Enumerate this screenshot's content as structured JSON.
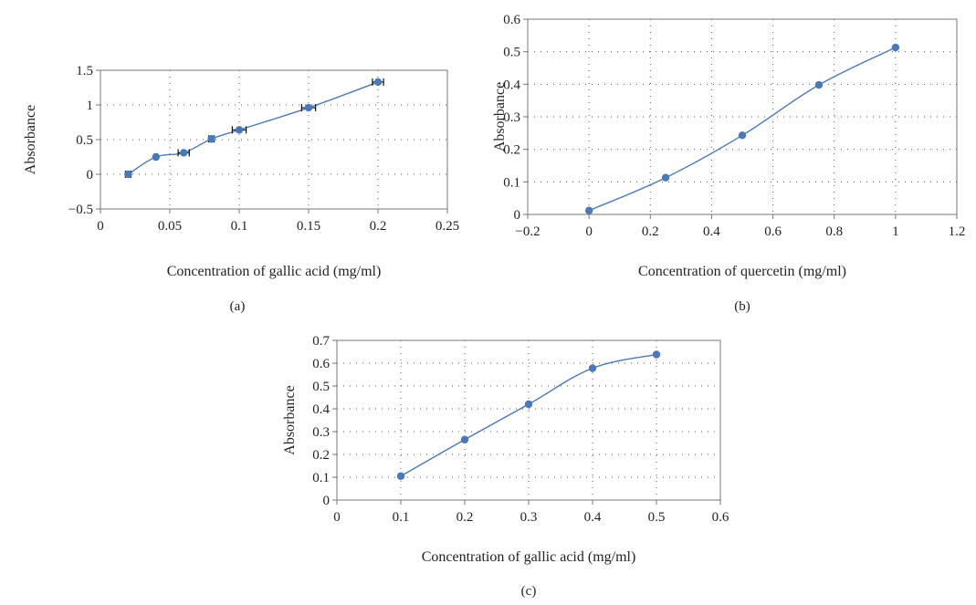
{
  "chart_data": [
    {
      "type": "line",
      "panel_label": "(a)",
      "xlabel": "Concentration of gallic acid (mg/ml)",
      "ylabel": "Absorbance",
      "xlim": [
        0,
        0.25
      ],
      "ylim": [
        -0.5,
        1.5
      ],
      "xticks": [
        0,
        0.05,
        0.1,
        0.15,
        0.2,
        0.25
      ],
      "xtick_labels": [
        "0",
        "0.05",
        "0.1",
        "0.15",
        "0.2",
        "0.25"
      ],
      "yticks": [
        -0.5,
        0,
        0.5,
        1,
        1.5
      ],
      "ytick_labels": [
        "−0.5",
        "0",
        "0.5",
        "1",
        "1.5"
      ],
      "grid": true,
      "color": "#4a78b8",
      "error_bars": true,
      "series": [
        {
          "x": [
            0.02,
            0.04,
            0.06,
            0.08,
            0.1,
            0.15,
            0.2
          ],
          "y": [
            0.0,
            0.25,
            0.31,
            0.51,
            0.64,
            0.96,
            1.33
          ],
          "x_error": [
            0.002,
            0.001,
            0.004,
            0.002,
            0.005,
            0.005,
            0.004
          ]
        }
      ]
    },
    {
      "type": "line",
      "panel_label": "(b)",
      "xlabel": "Concentration of quercetin (mg/ml)",
      "ylabel": "Absorbance",
      "xlim": [
        -0.2,
        1.2
      ],
      "ylim": [
        0,
        0.6
      ],
      "xticks": [
        -0.2,
        0,
        0.2,
        0.4,
        0.6,
        0.8,
        1,
        1.2
      ],
      "xtick_labels": [
        "−0.2",
        "0",
        "0.2",
        "0.4",
        "0.6",
        "0.8",
        "1",
        "1.2"
      ],
      "yticks": [
        0,
        0.1,
        0.2,
        0.3,
        0.4,
        0.5,
        0.6
      ],
      "ytick_labels": [
        "0",
        "0.1",
        "0.2",
        "0.3",
        "0.4",
        "0.5",
        "0.6"
      ],
      "grid": true,
      "color": "#4a78b8",
      "series": [
        {
          "x": [
            0,
            0.25,
            0.5,
            0.75,
            1.0
          ],
          "y": [
            0.012,
            0.113,
            0.243,
            0.398,
            0.513
          ]
        }
      ]
    },
    {
      "type": "line",
      "panel_label": "(c)",
      "xlabel": "Concentration of gallic acid (mg/ml)",
      "ylabel": "Absorbance",
      "xlim": [
        0,
        0.6
      ],
      "ylim": [
        0,
        0.7
      ],
      "xticks": [
        0,
        0.1,
        0.2,
        0.3,
        0.4,
        0.5,
        0.6
      ],
      "xtick_labels": [
        "0",
        "0.1",
        "0.2",
        "0.3",
        "0.4",
        "0.5",
        "0.6"
      ],
      "yticks": [
        0,
        0.1,
        0.2,
        0.3,
        0.4,
        0.5,
        0.6,
        0.7
      ],
      "ytick_labels": [
        "0",
        "0.1",
        "0.2",
        "0.3",
        "0.4",
        "0.5",
        "0.6",
        "0.7"
      ],
      "grid": true,
      "color": "#4a78b8",
      "series": [
        {
          "x": [
            0.1,
            0.2,
            0.3,
            0.4,
            0.5
          ],
          "y": [
            0.105,
            0.265,
            0.42,
            0.578,
            0.638
          ]
        }
      ]
    }
  ]
}
